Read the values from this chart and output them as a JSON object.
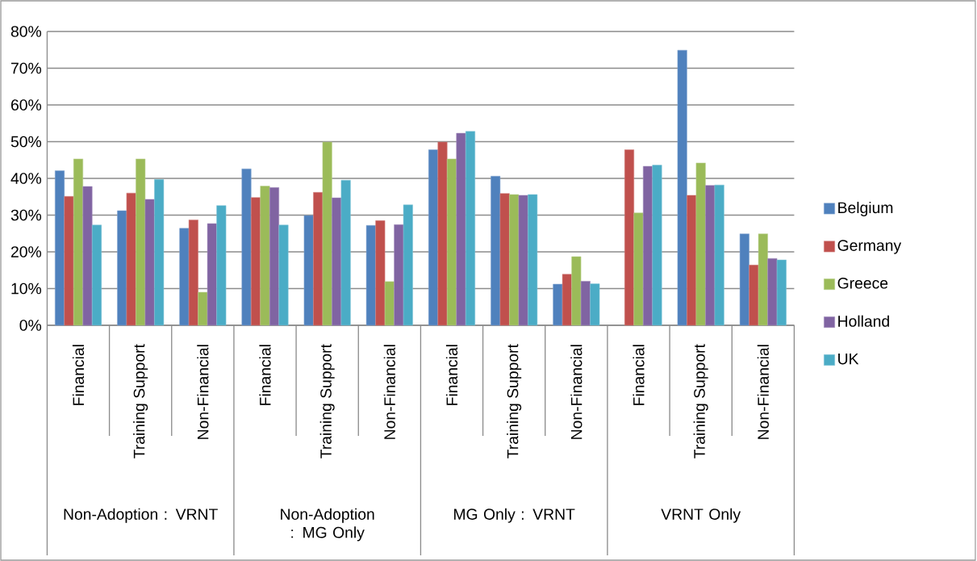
{
  "chart_data": {
    "type": "bar",
    "categories": [
      "Financial",
      "Training Support",
      "Non-Financial",
      "Financial",
      "Training Support",
      "Non-Financial",
      "Financial",
      "Training Support",
      "Non-Financial",
      "Financial",
      "Training Support",
      "Non-Financial"
    ],
    "annotations": [
      "Non-Adoption : VRNT",
      "Non-Adoption : MG Only",
      "MG Only : VRNT",
      "VRNT Only"
    ],
    "series": [
      {
        "name": "Belgium",
        "color": "#4f81bd",
        "values": [
          42.1,
          31.2,
          26.4,
          42.6,
          29.9,
          27.2,
          47.8,
          40.6,
          11.2,
          null,
          74.9,
          24.9
        ]
      },
      {
        "name": "Germany",
        "color": "#c0504d",
        "values": [
          35.1,
          36.0,
          28.7,
          34.8,
          36.2,
          28.5,
          49.9,
          35.9,
          13.9,
          47.8,
          35.4,
          16.4
        ]
      },
      {
        "name": "Greece",
        "color": "#9bbb59",
        "values": [
          45.3,
          45.3,
          9.0,
          37.9,
          49.9,
          11.9,
          45.3,
          35.6,
          18.7,
          30.6,
          44.2,
          24.9
        ]
      },
      {
        "name": "Holland",
        "color": "#8064a2",
        "values": [
          37.8,
          34.3,
          27.7,
          37.5,
          34.7,
          27.4,
          52.3,
          35.4,
          12.0,
          43.3,
          38.1,
          18.2
        ]
      },
      {
        "name": "UK",
        "color": "#4bacc6",
        "values": [
          27.3,
          39.7,
          32.6,
          27.3,
          39.5,
          32.8,
          52.8,
          35.6,
          11.3,
          43.6,
          38.2,
          17.8
        ]
      }
    ],
    "ylim": [
      0,
      80
    ],
    "yticks": [
      {
        "value": 0,
        "label": "0%"
      },
      {
        "value": 10,
        "label": "10%"
      },
      {
        "value": 20,
        "label": "20%"
      },
      {
        "value": 30,
        "label": "30%"
      },
      {
        "value": 40,
        "label": "40%"
      },
      {
        "value": 50,
        "label": "50%"
      },
      {
        "value": 60,
        "label": "60%"
      },
      {
        "value": 70,
        "label": "70%"
      },
      {
        "value": 80,
        "label": "80%"
      }
    ],
    "grid": "y",
    "legend": "right"
  }
}
